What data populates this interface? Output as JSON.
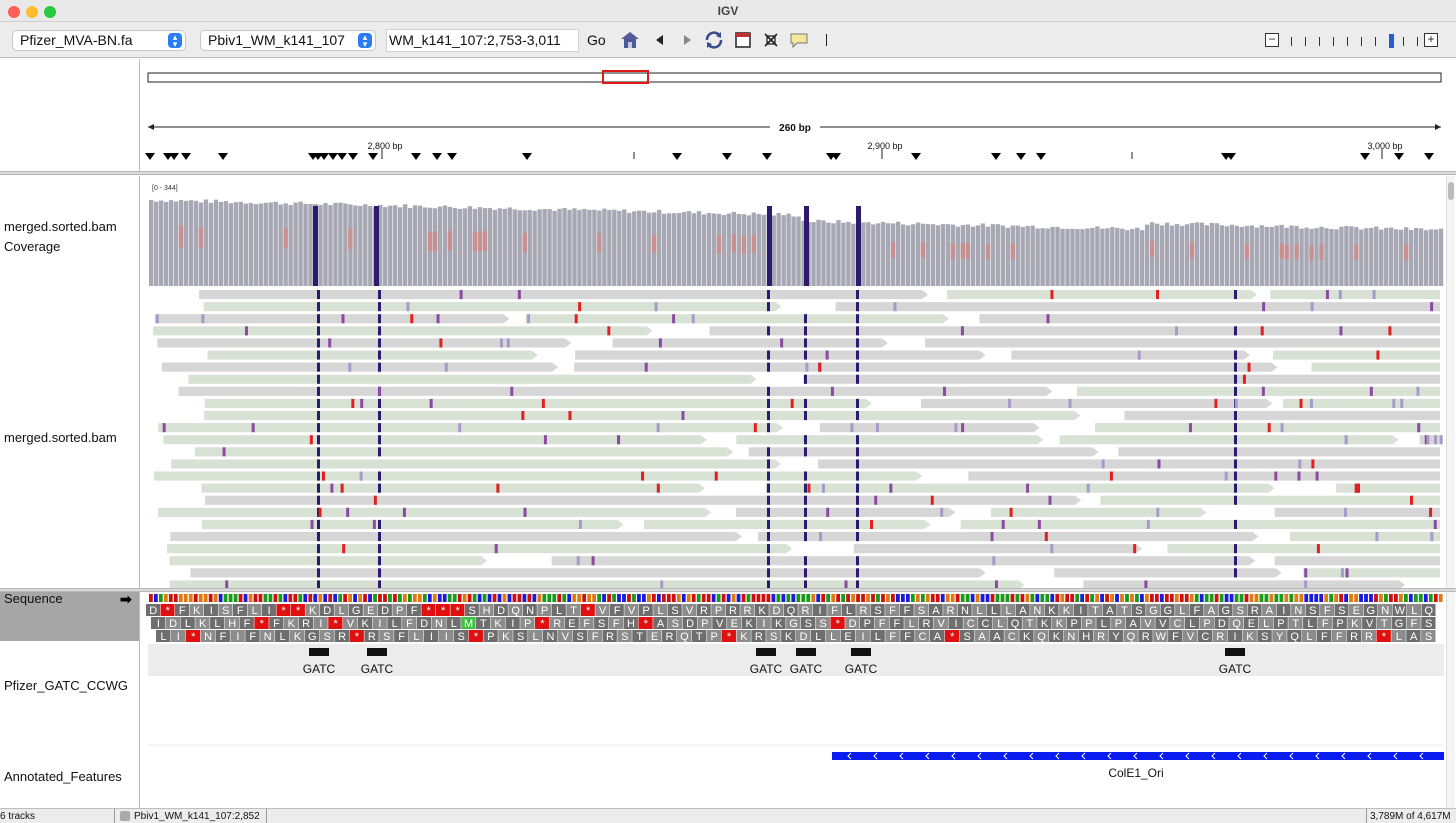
{
  "window": {
    "title": "IGV"
  },
  "toolbar": {
    "genome": "Pfizer_MVA-BN.fa",
    "chromosome": "Pbiv1_WM_k141_107",
    "locus": "WM_k141_107:2,753-3,011",
    "go_label": "Go",
    "icons": [
      "home-icon",
      "back-icon",
      "forward-icon",
      "refresh-icon",
      "roi-icon",
      "resize-icon",
      "popup-icon"
    ]
  },
  "ruler": {
    "span_label": "260 bp",
    "ticks": [
      "2,800 bp",
      "2,900 bp",
      "3,000 bp"
    ]
  },
  "coverage": {
    "label": "merged.sorted.bam Coverage",
    "range_label": "[0 - 344]"
  },
  "alignments": {
    "label": "merged.sorted.bam"
  },
  "sequence": {
    "label": "Sequence",
    "frame1": "D*FKISFLI**KDLGEDPF***SHDQNPLT*VFVPLSVRPRRKDQRIFLRSFFSARNLLLANKKITATSGGLFAGSRAINSFSEGNWLQ",
    "frame2": "IDLKLHF*FKRI*VKILFDNLMTKIP*REFSFH*ASDPVEKIKGSS*DPFFLRVICCLQTKKPPLPAVVCLPDQELPTLFPKVTGFS",
    "frame3": "LI*NFIFNLKGSR*RSFLIIS*PKSLNVSFRSTERQTP*KRSKDLLEILFFCA*SAACKQKNHRYQRWFVCRIKSYQLFFRR*LAS"
  },
  "gatc_track": {
    "label": "Pfizer_GATC_CCWG",
    "features": [
      "GATC",
      "GATC",
      "GATC",
      "GATC",
      "GATC",
      "GATC"
    ]
  },
  "annotated_features": {
    "label": "Annotated_Features",
    "feature_name": "ColE1_Ori"
  },
  "status_bar": {
    "tracks": "6 tracks",
    "position": "Pbiv1_WM_k141_107:2,852",
    "memory": "3,789M of 4,617M"
  },
  "colors": {
    "read_forward": "#d7e2d5",
    "read_reverse": "#d6d6d6",
    "coverage": "#a8a8b4",
    "mismatch_dark": "#2b1a6e",
    "mismatch_purple": "#8a4aa0",
    "mismatch_red": "#e02020",
    "feature_blue": "#0a1cf0"
  }
}
